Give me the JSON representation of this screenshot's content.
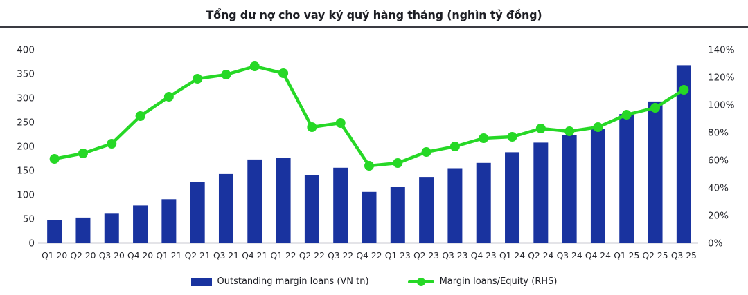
{
  "title": "Tổng dư nợ cho vay ký quý hàng tháng (nghìn tỷ đồng)",
  "legend": {
    "bar_label": "Outstanding margin loans (VN tn)",
    "line_label": "Margin loans/Equity (RHS)"
  },
  "colors": {
    "background": "#ffffff",
    "bar": "#19339f",
    "line": "#26d826",
    "axis_text": "#26272d",
    "baseline": "#e4e4e8",
    "title_text": "#1d1e24",
    "title_rule": "#3a3b42"
  },
  "chart_data": {
    "type": "bar",
    "subtype": "combo-bar-line",
    "title": "Tổng dư nợ cho vay ký quý hàng tháng (nghìn tỷ đồng)",
    "grid": false,
    "legend_position": "bottom",
    "categories": [
      "Q1 20",
      "Q2 20",
      "Q3 20",
      "Q4 20",
      "Q1 21",
      "Q2 21",
      "Q3 21",
      "Q4 21",
      "Q1 22",
      "Q2 22",
      "Q3 22",
      "Q4 22",
      "Q1 23",
      "Q2 23",
      "Q3 23",
      "Q4 23",
      "Q1 24",
      "Q2 24",
      "Q3 24",
      "Q4 24",
      "Q1 25",
      "Q2 25",
      "Q3 25"
    ],
    "series": [
      {
        "name": "Outstanding margin loans (VN tn)",
        "type": "bar",
        "axis": "left",
        "values": [
          48,
          53,
          61,
          78,
          91,
          126,
          143,
          173,
          177,
          140,
          156,
          106,
          117,
          137,
          155,
          166,
          188,
          208,
          223,
          237,
          267,
          293,
          368
        ]
      },
      {
        "name": "Margin loans/Equity (RHS)",
        "type": "line",
        "axis": "right",
        "unit": "%",
        "values": [
          61,
          65,
          72,
          92,
          106,
          119,
          122,
          128,
          123,
          84,
          87,
          56,
          58,
          66,
          70,
          76,
          77,
          83,
          81,
          84,
          93,
          98,
          111
        ]
      }
    ],
    "left_axis": {
      "min": 0,
      "max": 400,
      "tick_step": 50,
      "ticks": [
        0,
        50,
        100,
        150,
        200,
        250,
        300,
        350,
        400
      ]
    },
    "right_axis": {
      "min": 0,
      "max": 140,
      "tick_step": 20,
      "unit": "%",
      "ticks": [
        "0%",
        "20%",
        "40%",
        "60%",
        "80%",
        "100%",
        "120%",
        "140%"
      ]
    }
  }
}
